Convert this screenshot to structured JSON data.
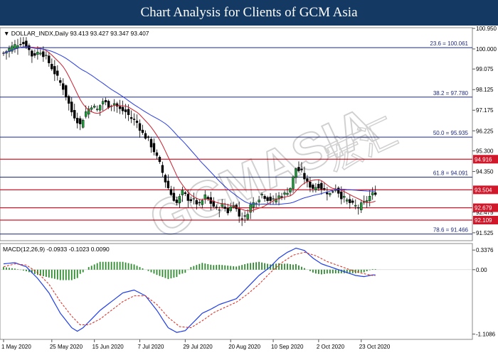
{
  "banner": {
    "title": "Chart Analysis for Clients of GCM Asia"
  },
  "watermark": {
    "text": "GCMASIA",
    "chinese": "宏汇"
  },
  "chart_data": {
    "type": "candlestick",
    "symbol_info": "DOLLAR_INDX,Daily  93.413 93.427 93.347 93.407",
    "price_axis": {
      "range": [
        91.16,
        100.98
      ],
      "ticks": [
        100.95,
        100.0,
        99.075,
        98.125,
        97.175,
        96.225,
        95.3,
        94.35,
        92.475,
        91.525
      ]
    },
    "fibonacci": [
      {
        "label": "23.6 = 100.061",
        "value": 100.061
      },
      {
        "label": "38.2 = 97.780",
        "value": 97.78
      },
      {
        "label": "50.0 = 95.935",
        "value": 95.935
      },
      {
        "label": "61.8 = 94.091",
        "value": 94.091
      },
      {
        "label": "78.6 = 91.466",
        "value": 91.466
      }
    ],
    "levels": [
      {
        "label": "94.916",
        "value": 94.916
      },
      {
        "label": "93.504",
        "value": 93.504
      },
      {
        "label": "92.679",
        "value": 92.679
      },
      {
        "label": "92.109",
        "value": 92.109
      }
    ],
    "date_ticks": [
      {
        "label": "1 May 2020",
        "index": 0
      },
      {
        "label": "25 May 2020",
        "index": 17
      },
      {
        "label": "15 Jun 2020",
        "index": 32
      },
      {
        "label": "7 Jul 2020",
        "index": 48
      },
      {
        "label": "29 Jul 2020",
        "index": 64
      },
      {
        "label": "20 Aug 2020",
        "index": 80
      },
      {
        "label": "10 Sep 2020",
        "index": 95
      },
      {
        "label": "2 Oct 2020",
        "index": 111
      },
      {
        "label": "23 Oct 2020",
        "index": 126
      }
    ],
    "close_anchors": [
      [
        0,
        99.8
      ],
      [
        3,
        100.1
      ],
      [
        6,
        100.3
      ],
      [
        8,
        100.2
      ],
      [
        10,
        99.7
      ],
      [
        13,
        99.9
      ],
      [
        15,
        99.6
      ],
      [
        18,
        98.9
      ],
      [
        21,
        98.2
      ],
      [
        24,
        97.1
      ],
      [
        27,
        96.5
      ],
      [
        29,
        97.1
      ],
      [
        31,
        97.4
      ],
      [
        33,
        97.2
      ],
      [
        35,
        97.6
      ],
      [
        37,
        97.4
      ],
      [
        39,
        97.5
      ],
      [
        41,
        97.2
      ],
      [
        43,
        97.1
      ],
      [
        45,
        96.8
      ],
      [
        47,
        96.6
      ],
      [
        49,
        96.1
      ],
      [
        51,
        95.8
      ],
      [
        53,
        95.3
      ],
      [
        55,
        94.7
      ],
      [
        57,
        93.9
      ],
      [
        59,
        93.3
      ],
      [
        61,
        92.9
      ],
      [
        63,
        93.4
      ],
      [
        65,
        93.1
      ],
      [
        67,
        93.0
      ],
      [
        69,
        92.8
      ],
      [
        71,
        93.2
      ],
      [
        73,
        92.9
      ],
      [
        75,
        92.6
      ],
      [
        77,
        92.8
      ],
      [
        79,
        92.5
      ],
      [
        81,
        92.9
      ],
      [
        83,
        92.3
      ],
      [
        85,
        92.2
      ],
      [
        87,
        92.8
      ],
      [
        89,
        93.0
      ],
      [
        91,
        93.3
      ],
      [
        93,
        93.1
      ],
      [
        95,
        93.0
      ],
      [
        97,
        93.2
      ],
      [
        99,
        93.3
      ],
      [
        101,
        93.6
      ],
      [
        103,
        94.5
      ],
      [
        105,
        94.3
      ],
      [
        107,
        93.8
      ],
      [
        109,
        93.6
      ],
      [
        111,
        93.7
      ],
      [
        113,
        93.5
      ],
      [
        115,
        93.3
      ],
      [
        117,
        93.6
      ],
      [
        119,
        93.2
      ],
      [
        121,
        93.0
      ],
      [
        123,
        92.8
      ],
      [
        125,
        92.7
      ],
      [
        127,
        92.9
      ],
      [
        129,
        93.2
      ],
      [
        131,
        93.4
      ]
    ],
    "macd": {
      "label": "MACD(12,26,9) -0.0933 -0.1023 0.0090",
      "range": [
        -1.2,
        0.45
      ],
      "ticks": [
        0.3376,
        0.0,
        -1.1086
      ],
      "main_anchors": [
        [
          0,
          0.1
        ],
        [
          4,
          0.12
        ],
        [
          8,
          0.05
        ],
        [
          12,
          -0.15
        ],
        [
          16,
          -0.4
        ],
        [
          20,
          -0.75
        ],
        [
          24,
          -1.0
        ],
        [
          26,
          -1.06
        ],
        [
          28,
          -1.0
        ],
        [
          31,
          -0.85
        ],
        [
          34,
          -0.7
        ],
        [
          38,
          -0.55
        ],
        [
          42,
          -0.4
        ],
        [
          46,
          -0.35
        ],
        [
          50,
          -0.45
        ],
        [
          54,
          -0.7
        ],
        [
          58,
          -1.0
        ],
        [
          61,
          -1.08
        ],
        [
          64,
          -1.05
        ],
        [
          67,
          -0.9
        ],
        [
          70,
          -0.75
        ],
        [
          73,
          -0.68
        ],
        [
          76,
          -0.6
        ],
        [
          79,
          -0.55
        ],
        [
          82,
          -0.5
        ],
        [
          86,
          -0.3
        ],
        [
          90,
          -0.1
        ],
        [
          94,
          0.05
        ],
        [
          97,
          0.2
        ],
        [
          100,
          0.3
        ],
        [
          103,
          0.37
        ],
        [
          106,
          0.33
        ],
        [
          109,
          0.2
        ],
        [
          112,
          0.1
        ],
        [
          115,
          0.05
        ],
        [
          118,
          0.0
        ],
        [
          121,
          -0.05
        ],
        [
          124,
          -0.1
        ],
        [
          127,
          -0.12
        ],
        [
          130,
          -0.09
        ]
      ],
      "signal_anchors": [
        [
          0,
          0.05
        ],
        [
          4,
          0.1
        ],
        [
          8,
          0.08
        ],
        [
          12,
          -0.05
        ],
        [
          16,
          -0.25
        ],
        [
          20,
          -0.55
        ],
        [
          24,
          -0.8
        ],
        [
          27,
          -0.95
        ],
        [
          30,
          -0.95
        ],
        [
          34,
          -0.85
        ],
        [
          38,
          -0.7
        ],
        [
          42,
          -0.55
        ],
        [
          46,
          -0.45
        ],
        [
          50,
          -0.45
        ],
        [
          54,
          -0.6
        ],
        [
          58,
          -0.82
        ],
        [
          62,
          -0.98
        ],
        [
          66,
          -1.0
        ],
        [
          70,
          -0.88
        ],
        [
          74,
          -0.74
        ],
        [
          78,
          -0.65
        ],
        [
          82,
          -0.56
        ],
        [
          86,
          -0.42
        ],
        [
          90,
          -0.25
        ],
        [
          94,
          -0.05
        ],
        [
          98,
          0.12
        ],
        [
          102,
          0.25
        ],
        [
          106,
          0.3
        ],
        [
          110,
          0.24
        ],
        [
          114,
          0.14
        ],
        [
          118,
          0.07
        ],
        [
          122,
          0.0
        ],
        [
          126,
          -0.06
        ],
        [
          130,
          -0.1
        ]
      ]
    }
  }
}
